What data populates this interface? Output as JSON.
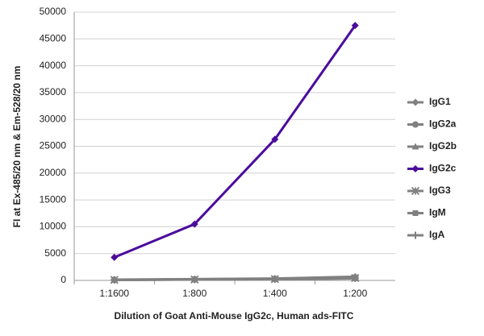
{
  "chart_data": {
    "type": "line",
    "x_label": "Dilution of Goat Anti-Mouse IgG2c, Human ads-FITC",
    "y_label": "FI at Ex-485/20 nm & Em-528/20 nm",
    "categories": [
      "1:1600",
      "1:800",
      "1:400",
      "1:200"
    ],
    "ylim": [
      0,
      50000
    ],
    "yticks": [
      0,
      5000,
      10000,
      15000,
      20000,
      25000,
      30000,
      35000,
      40000,
      45000,
      50000
    ],
    "grid": true,
    "legend": "right",
    "series": [
      {
        "name": "IgG1",
        "color": "#808080",
        "marker": "diamond",
        "values": [
          150,
          250,
          350,
          700
        ]
      },
      {
        "name": "IgG2a",
        "color": "#808080",
        "marker": "circle",
        "values": [
          120,
          200,
          300,
          550
        ]
      },
      {
        "name": "IgG2b",
        "color": "#808080",
        "marker": "triangle",
        "values": [
          110,
          190,
          280,
          500
        ]
      },
      {
        "name": "IgG2c",
        "color": "#4b0c9c",
        "marker": "diamond",
        "values": [
          4300,
          10500,
          26300,
          47500
        ]
      },
      {
        "name": "IgG3",
        "color": "#808080",
        "marker": "star",
        "values": [
          100,
          170,
          250,
          450
        ]
      },
      {
        "name": "IgM",
        "color": "#808080",
        "marker": "square",
        "values": [
          100,
          160,
          240,
          400
        ]
      },
      {
        "name": "IgA",
        "color": "#808080",
        "marker": "plus",
        "values": [
          90,
          150,
          220,
          380
        ]
      }
    ]
  }
}
